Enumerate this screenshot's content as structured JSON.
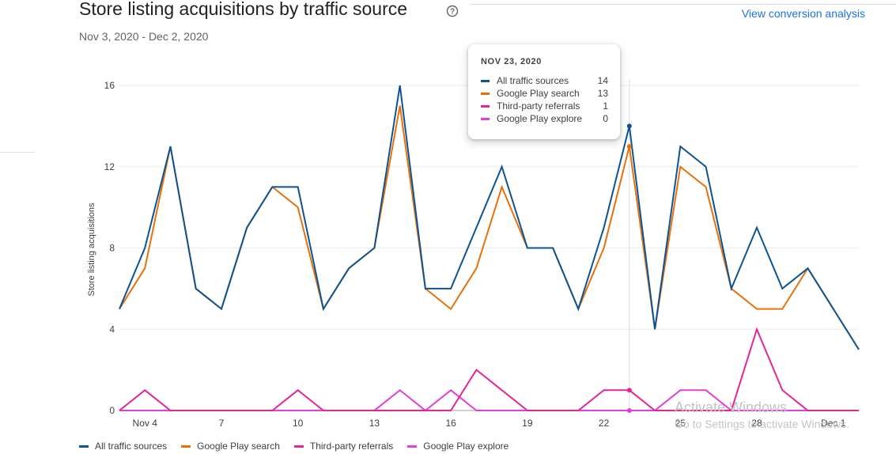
{
  "header": {
    "title": "Store listing acquisitions by traffic source",
    "date_range": "Nov 3, 2020 - Dec 2, 2020",
    "conversion_link": "View conversion analysis"
  },
  "chart_data": {
    "type": "line",
    "ylabel": "Store listing acquisitions",
    "ylim": [
      0,
      16
    ],
    "yticks": [
      "0",
      "4",
      "8",
      "12",
      "16"
    ],
    "x": [
      "Nov 3",
      "Nov 4",
      "Nov 5",
      "Nov 6",
      "Nov 7",
      "Nov 8",
      "Nov 9",
      "Nov 10",
      "Nov 11",
      "Nov 12",
      "Nov 13",
      "Nov 14",
      "Nov 15",
      "Nov 16",
      "Nov 17",
      "Nov 18",
      "Nov 19",
      "Nov 20",
      "Nov 21",
      "Nov 22",
      "Nov 23",
      "Nov 24",
      "Nov 25",
      "Nov 26",
      "Nov 27",
      "Nov 28",
      "Nov 29",
      "Nov 30",
      "Dec 1",
      "Dec 2"
    ],
    "xtick_labels": [
      {
        "label": "Nov 4",
        "index": 1
      },
      {
        "label": "7",
        "index": 4
      },
      {
        "label": "10",
        "index": 7
      },
      {
        "label": "13",
        "index": 10
      },
      {
        "label": "16",
        "index": 13
      },
      {
        "label": "19",
        "index": 16
      },
      {
        "label": "22",
        "index": 19
      },
      {
        "label": "25",
        "index": 22
      },
      {
        "label": "28",
        "index": 25
      },
      {
        "label": "Dec 1",
        "index": 28
      }
    ],
    "grid": true,
    "legend_position": "bottom-left",
    "series": [
      {
        "name": "All traffic sources",
        "color": "#0b5394",
        "values": [
          5,
          8,
          13,
          6,
          5,
          9,
          11,
          11,
          5,
          7,
          8,
          16,
          6,
          6,
          9,
          12,
          8,
          8,
          5,
          9,
          14,
          4,
          13,
          12,
          6,
          9,
          6,
          7,
          5,
          3
        ]
      },
      {
        "name": "Google Play search",
        "color": "#e8710a",
        "values": [
          5,
          7,
          13,
          6,
          5,
          9,
          11,
          10,
          5,
          7,
          8,
          15,
          6,
          5,
          7,
          11,
          8,
          8,
          5,
          8,
          13,
          4,
          12,
          11,
          6,
          5,
          5,
          7,
          5,
          3
        ]
      },
      {
        "name": "Third-party referrals",
        "color": "#e52592",
        "values": [
          0,
          1,
          0,
          0,
          0,
          0,
          0,
          1,
          0,
          0,
          0,
          0,
          0,
          0,
          2,
          1,
          0,
          0,
          0,
          1,
          1,
          0,
          0,
          0,
          0,
          4,
          1,
          0,
          0,
          0
        ]
      },
      {
        "name": "Google Play explore",
        "color": "#e040d8",
        "values": [
          0,
          0,
          0,
          0,
          0,
          0,
          0,
          0,
          0,
          0,
          0,
          1,
          0,
          1,
          0,
          0,
          0,
          0,
          0,
          0,
          0,
          0,
          1,
          1,
          0,
          0,
          0,
          0,
          0,
          0
        ]
      }
    ],
    "tooltip": {
      "date": "NOV 23, 2020",
      "index": 20,
      "rows": [
        {
          "name": "All traffic sources",
          "value": "14"
        },
        {
          "name": "Google Play search",
          "value": "13"
        },
        {
          "name": "Third-party referrals",
          "value": "1"
        },
        {
          "name": "Google Play explore",
          "value": "0"
        }
      ]
    }
  },
  "watermark": {
    "line1": "Activate Windows",
    "line2": "Go to Settings to activate Windows."
  }
}
